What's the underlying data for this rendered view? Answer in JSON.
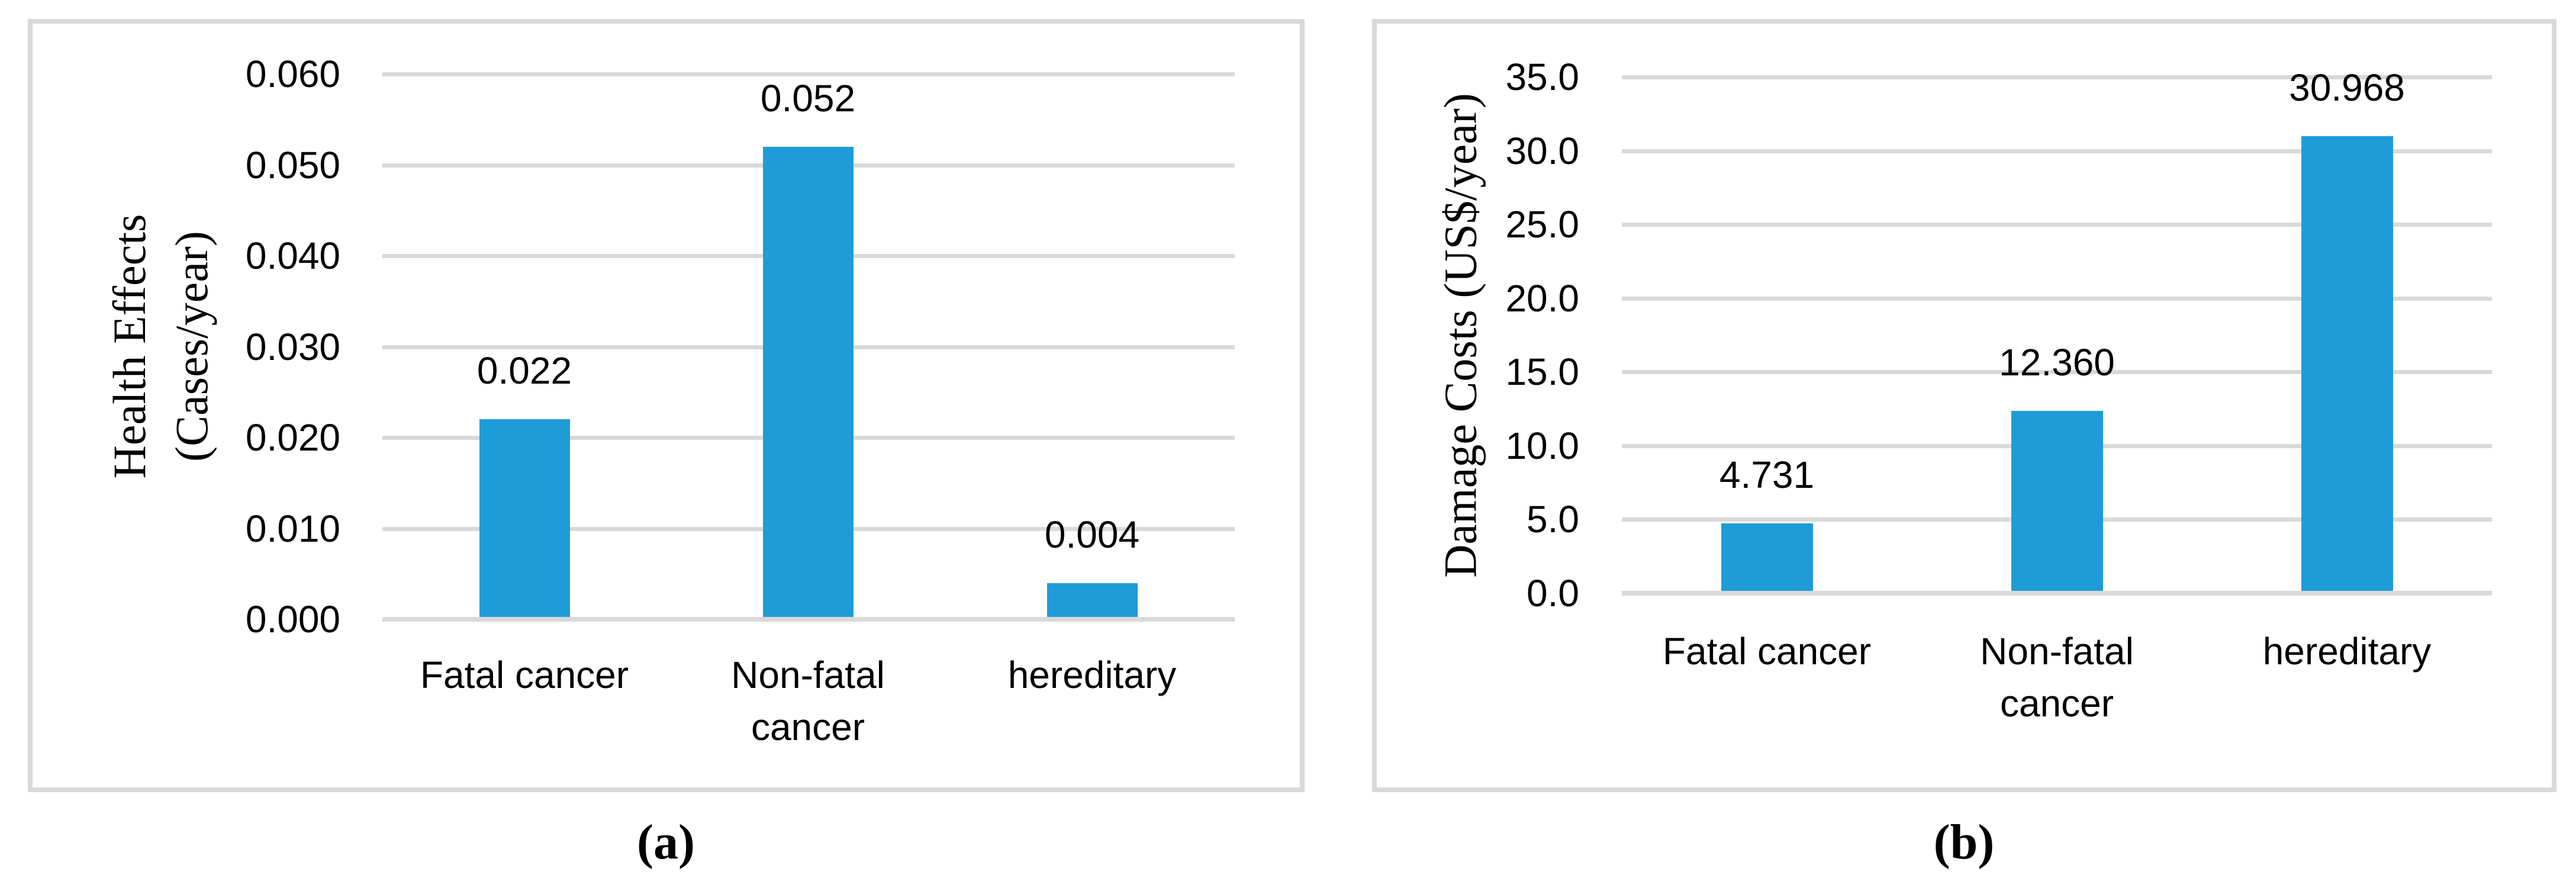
{
  "figure": {
    "background": "#ffffff",
    "panel_border_color": "#d9d9d9",
    "gridline_color": "#d9d9d9",
    "axis_line_color": "#d9d9d9",
    "bar_color": "#1e9cd7",
    "text_color": "#000000",
    "captions": [
      {
        "label": "(a)"
      },
      {
        "label": "(b)"
      }
    ]
  },
  "chart_data": [
    {
      "id": "health-effects",
      "type": "bar",
      "title": "",
      "ylabel_lines": [
        "Health Effects",
        "(Cases/year)"
      ],
      "ylabel": "Health Effects (Cases/year)",
      "categories": [
        [
          "Fatal cancer"
        ],
        [
          "Non-fatal",
          "cancer"
        ],
        [
          "hereditary"
        ]
      ],
      "values": [
        0.022,
        0.052,
        0.004
      ],
      "data_labels": [
        "0.022",
        "0.052",
        "0.004"
      ],
      "yticks_bottom_to_top": [
        "0.000",
        "0.010",
        "0.020",
        "0.030",
        "0.040",
        "0.050",
        "0.060"
      ],
      "ylim": [
        0,
        0.06
      ],
      "grid": true,
      "legend": false,
      "caption": "(a)"
    },
    {
      "id": "damage-costs",
      "type": "bar",
      "title": "",
      "ylabel_lines": [
        "Damage Costs (US$/year)"
      ],
      "ylabel": "Damage Costs (US$/year)",
      "categories": [
        [
          "Fatal cancer"
        ],
        [
          "Non-fatal",
          "cancer"
        ],
        [
          "hereditary"
        ]
      ],
      "values": [
        4.731,
        12.36,
        30.968
      ],
      "data_labels": [
        "4.731",
        "12.360",
        "30.968"
      ],
      "yticks_bottom_to_top": [
        "0.0",
        "5.0",
        "10.0",
        "15.0",
        "20.0",
        "25.0",
        "30.0",
        "35.0"
      ],
      "ylim": [
        0,
        35
      ],
      "grid": true,
      "legend": false,
      "caption": "(b)"
    }
  ]
}
